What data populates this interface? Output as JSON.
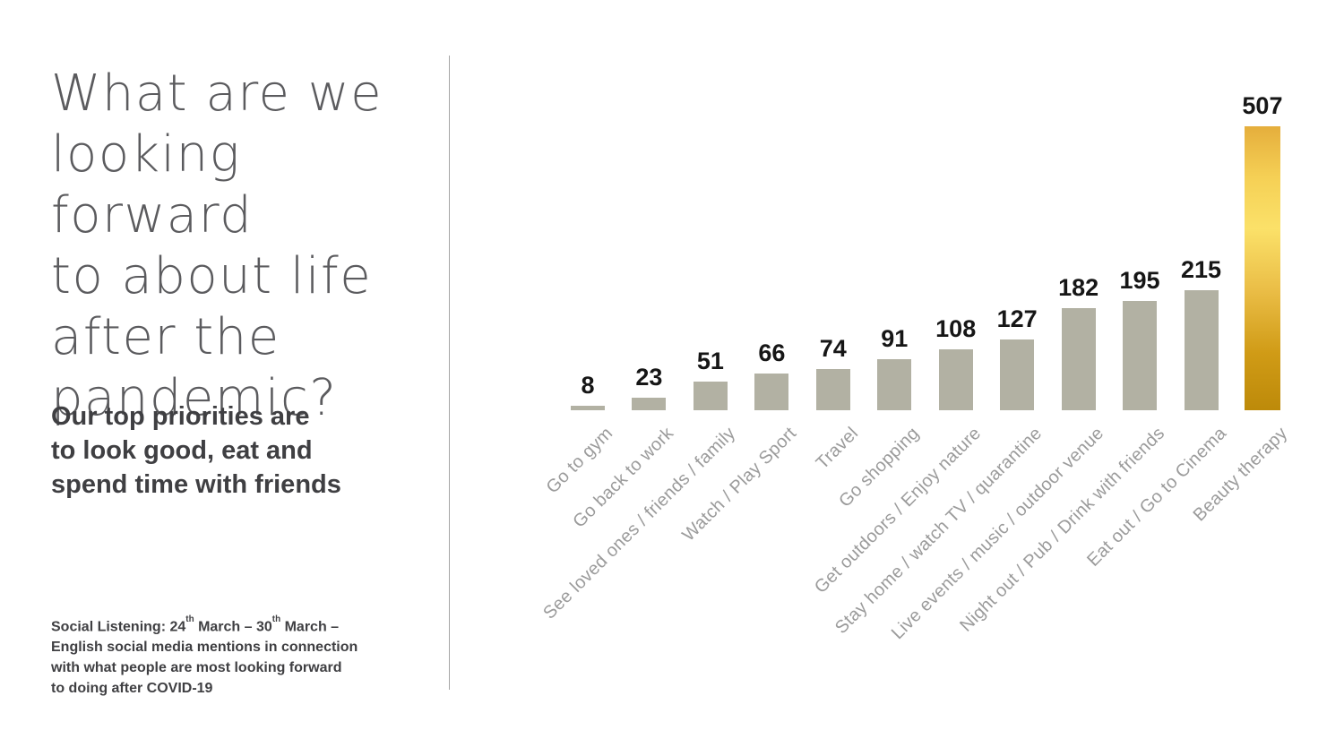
{
  "left_panel": {
    "title_lines": [
      "What are we",
      "looking forward",
      "to about life",
      "after the",
      "pandemic?"
    ],
    "subtitle_lines": [
      "Our top priorities are",
      "to look good, eat and",
      "spend time with friends"
    ],
    "footnote": {
      "line1_a": "Social Listening: 24",
      "line1_sup_a": "th",
      "line1_b": " March – 30",
      "line1_sup_b": "th",
      "line1_c": " March –",
      "line2": "English social media mentions in connection",
      "line3": "with what people are most looking forward",
      "line4": "to doing after COVID-19"
    }
  },
  "colors": {
    "bar": "#b2b1a3",
    "title_text": "#5b5b5e",
    "body_text": "#3f3f42",
    "category_text": "#9b9b9b",
    "value_text": "#161616",
    "divider": "#a6a6a6",
    "page_bg": "#ffffff",
    "highlight_gradient_stops": [
      "#e5ae3c",
      "#f5d055",
      "#fbe169",
      "#eabd46",
      "#d09b16",
      "#bd8a0a"
    ],
    "highlight_gradient_positions": [
      0,
      18,
      36,
      58,
      80,
      100
    ]
  },
  "chart_data": {
    "type": "bar",
    "orientation": "vertical",
    "title": "",
    "xlabel": "",
    "ylabel": "",
    "ylim": [
      0,
      507
    ],
    "grid": false,
    "axis_lines": "none",
    "value_labels_shown": true,
    "categories": [
      "Go to gym",
      "Go back to work",
      "See loved ones / friends / family",
      "Watch / Play Sport",
      "Travel",
      "Go shopping",
      "Get outdoors / Enjoy nature",
      "Stay home / watch TV / quarantine",
      "Live events / music / outdoor venue",
      "Night out / Pub / Drink with friends",
      "Eat out / Go to Cinema",
      "Beauty therapy"
    ],
    "values": [
      8,
      23,
      51,
      66,
      74,
      91,
      108,
      127,
      182,
      195,
      215,
      507
    ],
    "highlight_category": "Beauty therapy"
  }
}
